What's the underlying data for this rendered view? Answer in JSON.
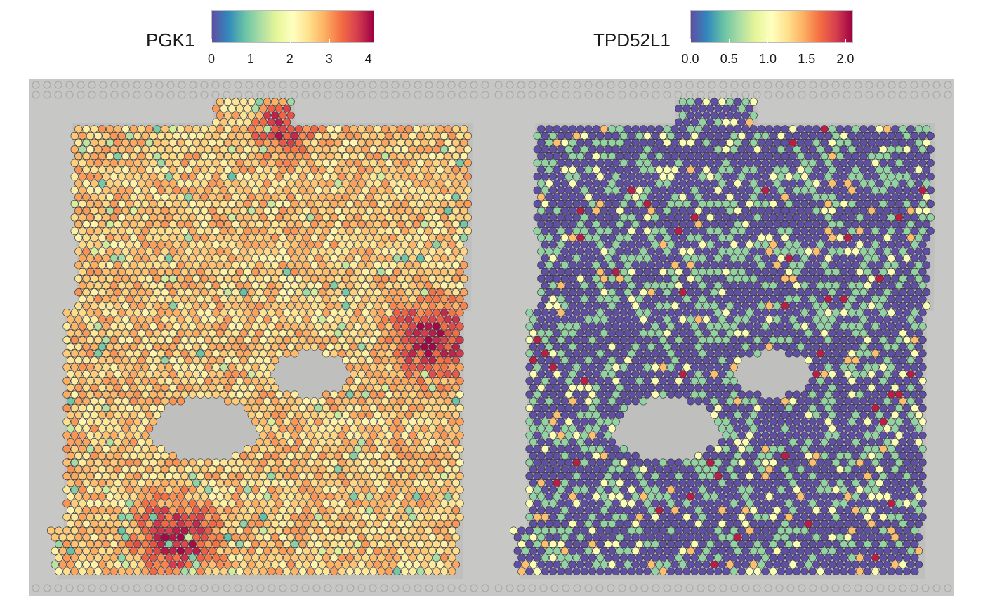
{
  "chart_data": [
    {
      "type": "scatter",
      "title": "",
      "legend": {
        "title": "PGK1",
        "placement": "top",
        "ticks": [
          "0",
          "1",
          "2",
          "3",
          "4"
        ],
        "tick_values": [
          0,
          1,
          2,
          3,
          4
        ],
        "range": [
          0,
          4.15
        ]
      },
      "palette": [
        "#5e4fa2",
        "#3288bd",
        "#66c2a5",
        "#abdda4",
        "#e6f598",
        "#ffffbf",
        "#fee08b",
        "#fdae61",
        "#f46d43",
        "#d53e4f",
        "#9e0142"
      ],
      "value_summary": {
        "typical": 2.5,
        "min": 0.3,
        "max": 4.1
      },
      "high_regions": [
        "top-center",
        "right-middle",
        "bottom-left"
      ]
    },
    {
      "type": "scatter",
      "title": "",
      "legend": {
        "title": "TPD52L1",
        "placement": "top",
        "ticks": [
          "0.0",
          "0.5",
          "1.0",
          "1.5",
          "2.0"
        ],
        "tick_values": [
          0,
          0.5,
          1.0,
          1.5,
          2.0
        ],
        "range": [
          0,
          2.1
        ]
      },
      "palette": [
        "#5e4fa2",
        "#3288bd",
        "#66c2a5",
        "#abdda4",
        "#e6f598",
        "#ffffbf",
        "#fee08b",
        "#fdae61",
        "#f46d43",
        "#d53e4f",
        "#9e0142"
      ],
      "value_summary": {
        "typical": 0.0,
        "min": 0.0,
        "max": 2.1
      },
      "nonzero_levels": [
        0.55,
        1.0,
        1.4,
        2.0
      ]
    }
  ]
}
